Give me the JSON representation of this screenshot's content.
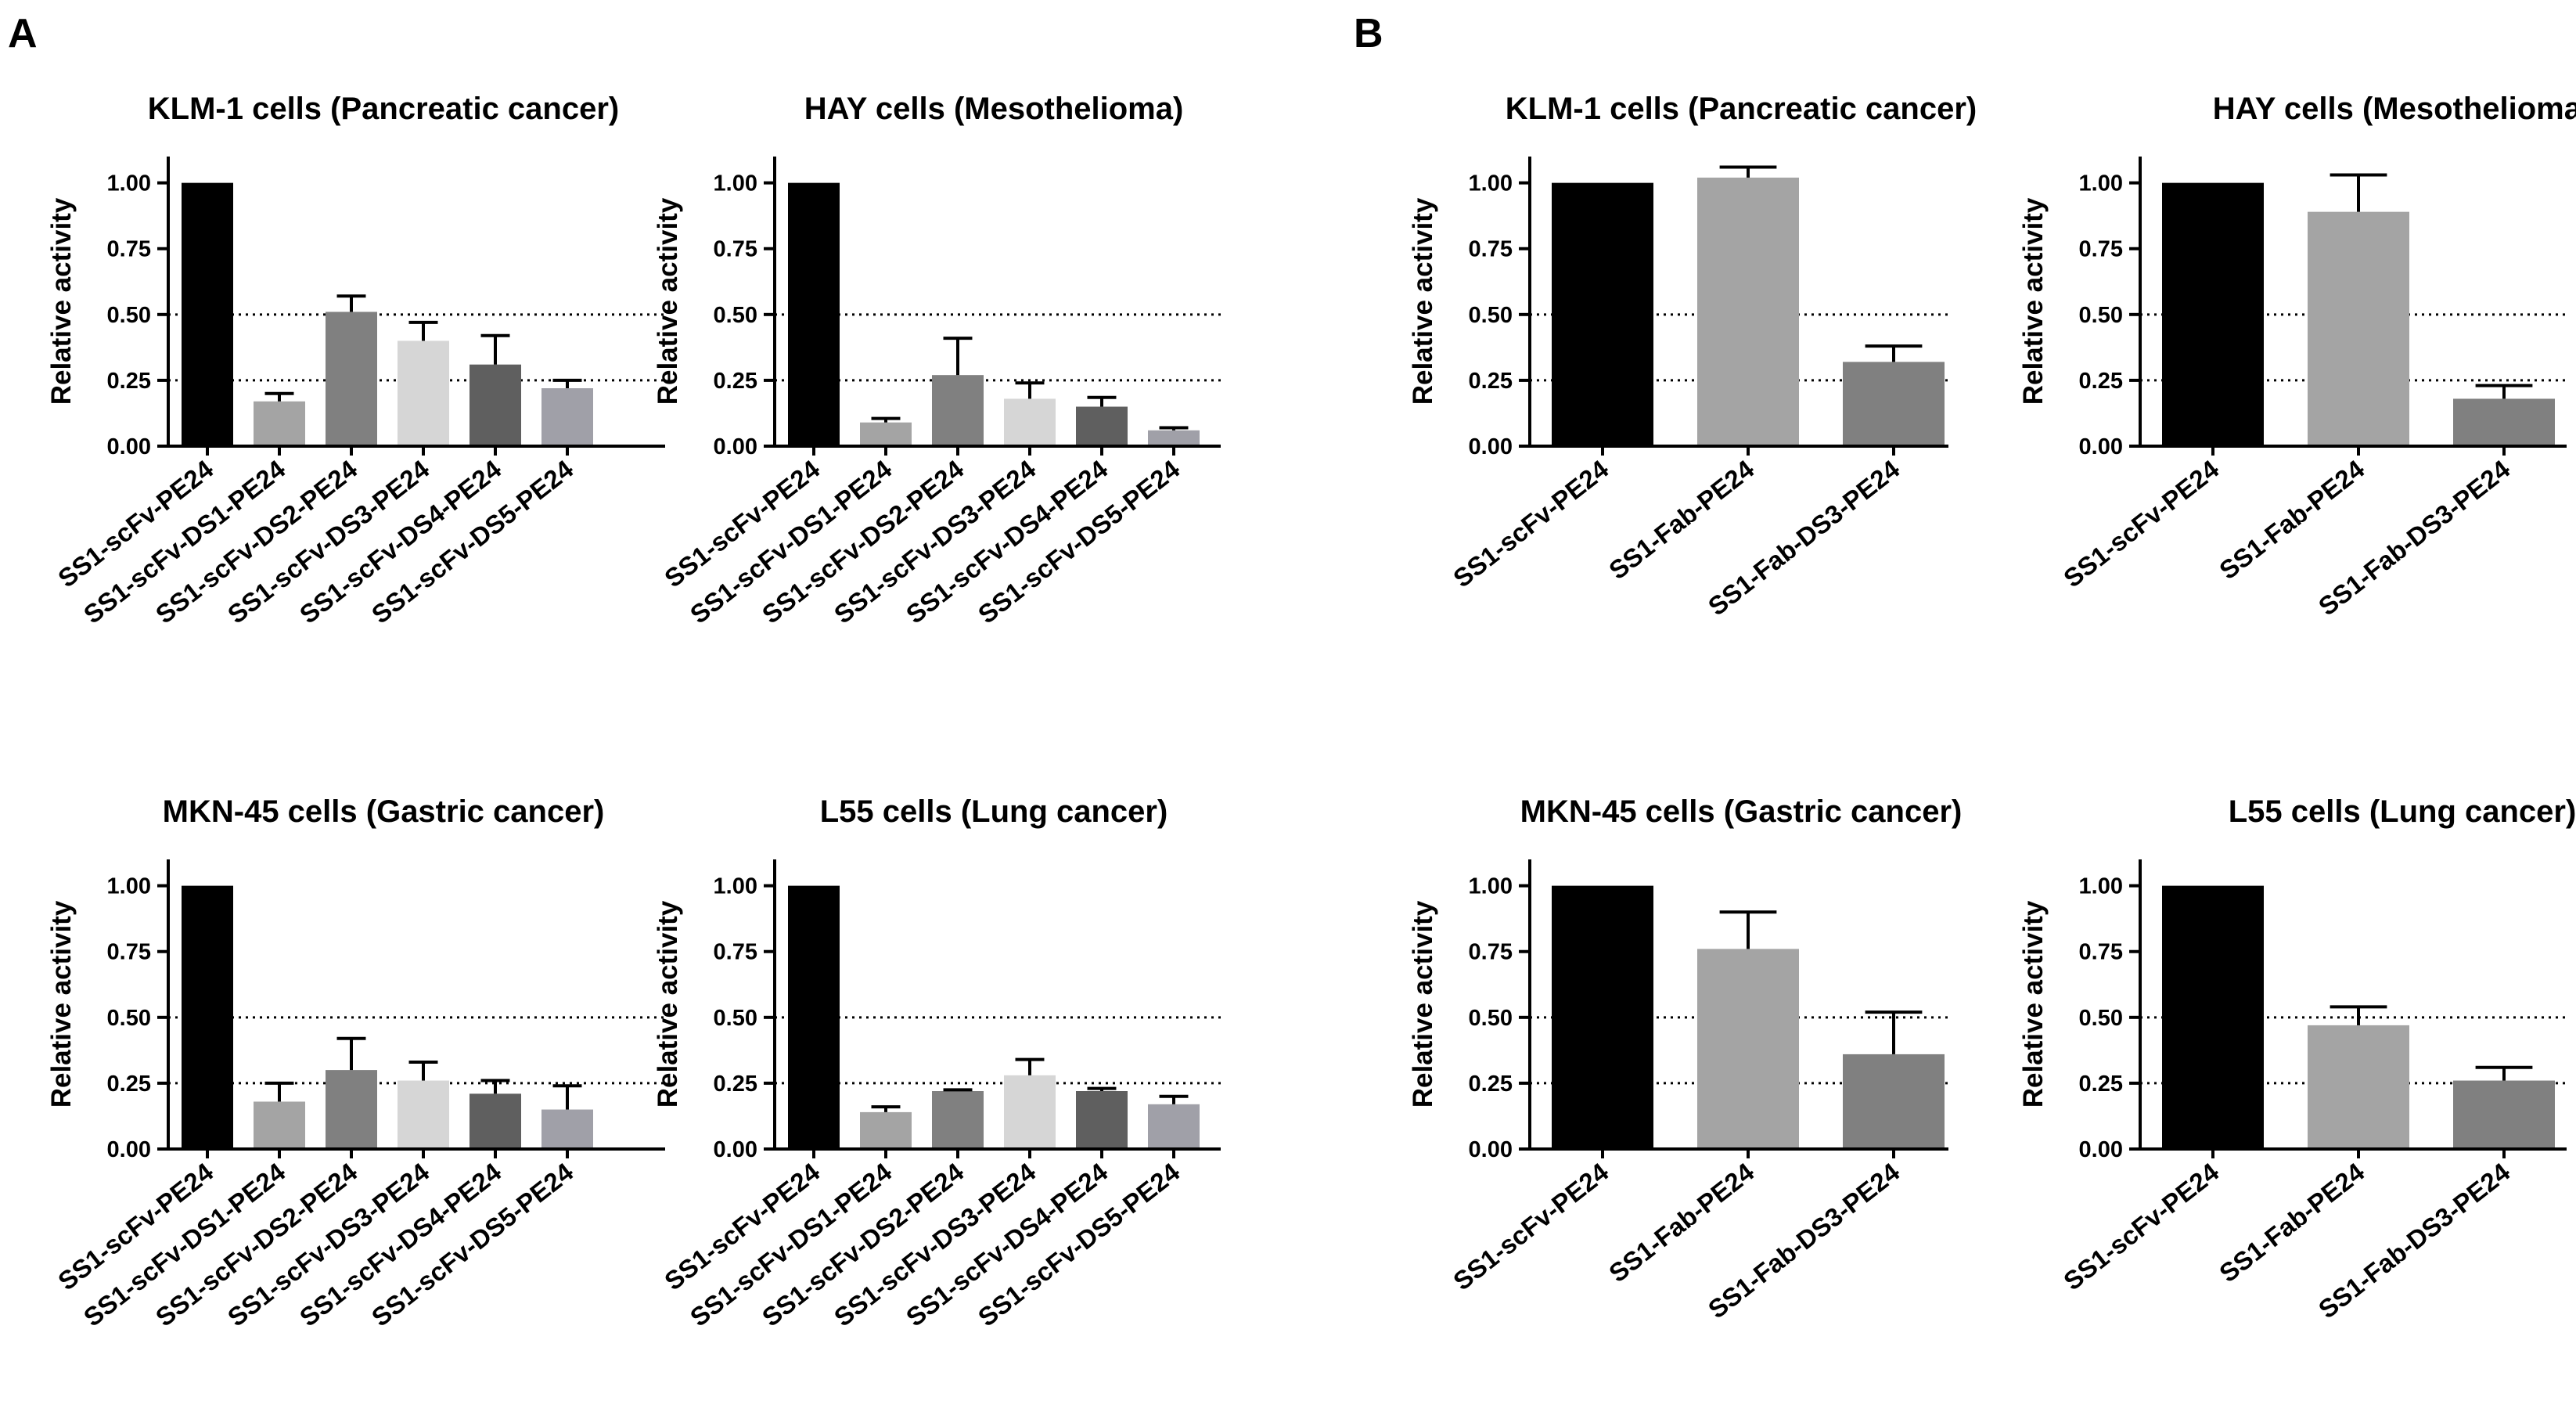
{
  "panels": {
    "A": {
      "label": "A"
    },
    "B": {
      "label": "B"
    }
  },
  "chart_data": [
    {
      "panel": "A",
      "type": "bar",
      "title": "KLM-1 cells (Pancreatic cancer)",
      "xlabel": "",
      "ylabel": "Relative activity",
      "ylim": [
        0,
        1.1
      ],
      "yticks": [
        "0.00",
        "0.25",
        "0.50",
        "0.75",
        "1.00"
      ],
      "reference_lines": [
        0.25,
        0.5
      ],
      "categories": [
        "SS1-scFv-PE24",
        "SS1-scFv-DS1-PE24",
        "SS1-scFv-DS2-PE24",
        "SS1-scFv-DS3-PE24",
        "SS1-scFv-DS4-PE24",
        "SS1-scFv-DS5-PE24"
      ],
      "values": [
        1.0,
        0.17,
        0.51,
        0.4,
        0.31,
        0.22
      ],
      "errors": [
        0.0,
        0.03,
        0.06,
        0.07,
        0.11,
        0.03
      ],
      "colors": [
        "#000000",
        "#a4a4a4",
        "#808080",
        "#d6d6d6",
        "#5f5f5f",
        "#a0a0a8"
      ]
    },
    {
      "panel": "A",
      "type": "bar",
      "title": "HAY cells (Mesothelioma)",
      "xlabel": "",
      "ylabel": "Relative activity",
      "ylim": [
        0,
        1.1
      ],
      "yticks": [
        "0.00",
        "0.25",
        "0.50",
        "0.75",
        "1.00"
      ],
      "reference_lines": [
        0.25,
        0.5
      ],
      "categories": [
        "SS1-scFv-PE24",
        "SS1-scFv-DS1-PE24",
        "SS1-scFv-DS2-PE24",
        "SS1-scFv-DS3-PE24",
        "SS1-scFv-DS4-PE24",
        "SS1-scFv-DS5-PE24"
      ],
      "values": [
        1.0,
        0.09,
        0.27,
        0.18,
        0.15,
        0.06
      ],
      "errors": [
        0.0,
        0.015,
        0.14,
        0.06,
        0.035,
        0.01
      ],
      "colors": [
        "#000000",
        "#a4a4a4",
        "#808080",
        "#d6d6d6",
        "#5f5f5f",
        "#a0a0a8"
      ]
    },
    {
      "panel": "A",
      "type": "bar",
      "title": "MKN-45 cells (Gastric cancer)",
      "xlabel": "",
      "ylabel": "Relative activity",
      "ylim": [
        0,
        1.1
      ],
      "yticks": [
        "0.00",
        "0.25",
        "0.50",
        "0.75",
        "1.00"
      ],
      "reference_lines": [
        0.25,
        0.5
      ],
      "categories": [
        "SS1-scFv-PE24",
        "SS1-scFv-DS1-PE24",
        "SS1-scFv-DS2-PE24",
        "SS1-scFv-DS3-PE24",
        "SS1-scFv-DS4-PE24",
        "SS1-scFv-DS5-PE24"
      ],
      "values": [
        1.0,
        0.18,
        0.3,
        0.26,
        0.21,
        0.15
      ],
      "errors": [
        0.0,
        0.07,
        0.12,
        0.07,
        0.05,
        0.09
      ],
      "colors": [
        "#000000",
        "#a4a4a4",
        "#808080",
        "#d6d6d6",
        "#5f5f5f",
        "#a0a0a8"
      ]
    },
    {
      "panel": "A",
      "type": "bar",
      "title": "L55 cells (Lung cancer)",
      "xlabel": "",
      "ylabel": "Relative activity",
      "ylim": [
        0,
        1.1
      ],
      "yticks": [
        "0.00",
        "0.25",
        "0.50",
        "0.75",
        "1.00"
      ],
      "reference_lines": [
        0.25,
        0.5
      ],
      "categories": [
        "SS1-scFv-PE24",
        "SS1-scFv-DS1-PE24",
        "SS1-scFv-DS2-PE24",
        "SS1-scFv-DS3-PE24",
        "SS1-scFv-DS4-PE24",
        "SS1-scFv-DS5-PE24"
      ],
      "values": [
        1.0,
        0.14,
        0.22,
        0.28,
        0.22,
        0.17
      ],
      "errors": [
        0.0,
        0.02,
        0.005,
        0.06,
        0.01,
        0.03
      ],
      "colors": [
        "#000000",
        "#a4a4a4",
        "#808080",
        "#d6d6d6",
        "#5f5f5f",
        "#a0a0a8"
      ]
    },
    {
      "panel": "B",
      "type": "bar",
      "title": "KLM-1 cells (Pancreatic cancer)",
      "xlabel": "",
      "ylabel": "Relative activity",
      "ylim": [
        0,
        1.1
      ],
      "yticks": [
        "0.00",
        "0.25",
        "0.50",
        "0.75",
        "1.00"
      ],
      "reference_lines": [
        0.25,
        0.5
      ],
      "categories": [
        "SS1-scFv-PE24",
        "SS1-Fab-PE24",
        "SS1-Fab-DS3-PE24"
      ],
      "values": [
        1.0,
        1.02,
        0.32
      ],
      "errors": [
        0.0,
        0.04,
        0.06
      ],
      "colors": [
        "#000000",
        "#a4a4a4",
        "#808080"
      ]
    },
    {
      "panel": "B",
      "type": "bar",
      "title": "HAY cells (Mesothelioma)",
      "xlabel": "",
      "ylabel": "Relative activity",
      "ylim": [
        0,
        1.1
      ],
      "yticks": [
        "0.00",
        "0.25",
        "0.50",
        "0.75",
        "1.00"
      ],
      "reference_lines": [
        0.25,
        0.5
      ],
      "categories": [
        "SS1-scFv-PE24",
        "SS1-Fab-PE24",
        "SS1-Fab-DS3-PE24"
      ],
      "values": [
        1.0,
        0.89,
        0.18
      ],
      "errors": [
        0.0,
        0.14,
        0.05
      ],
      "colors": [
        "#000000",
        "#a4a4a4",
        "#808080"
      ]
    },
    {
      "panel": "B",
      "type": "bar",
      "title": "MKN-45 cells (Gastric cancer)",
      "xlabel": "",
      "ylabel": "Relative activity",
      "ylim": [
        0,
        1.1
      ],
      "yticks": [
        "0.00",
        "0.25",
        "0.50",
        "0.75",
        "1.00"
      ],
      "reference_lines": [
        0.25,
        0.5
      ],
      "categories": [
        "SS1-scFv-PE24",
        "SS1-Fab-PE24",
        "SS1-Fab-DS3-PE24"
      ],
      "values": [
        1.0,
        0.76,
        0.36
      ],
      "errors": [
        0.0,
        0.14,
        0.16
      ],
      "colors": [
        "#000000",
        "#a4a4a4",
        "#808080"
      ]
    },
    {
      "panel": "B",
      "type": "bar",
      "title": "L55 cells (Lung cancer)",
      "xlabel": "",
      "ylabel": "Relative activity",
      "ylim": [
        0,
        1.1
      ],
      "yticks": [
        "0.00",
        "0.25",
        "0.50",
        "0.75",
        "1.00"
      ],
      "reference_lines": [
        0.25,
        0.5
      ],
      "categories": [
        "SS1-scFv-PE24",
        "SS1-Fab-PE24",
        "SS1-Fab-DS3-PE24"
      ],
      "values": [
        1.0,
        0.47,
        0.26
      ],
      "errors": [
        0.0,
        0.07,
        0.05
      ],
      "colors": [
        "#000000",
        "#a4a4a4",
        "#808080"
      ]
    }
  ]
}
